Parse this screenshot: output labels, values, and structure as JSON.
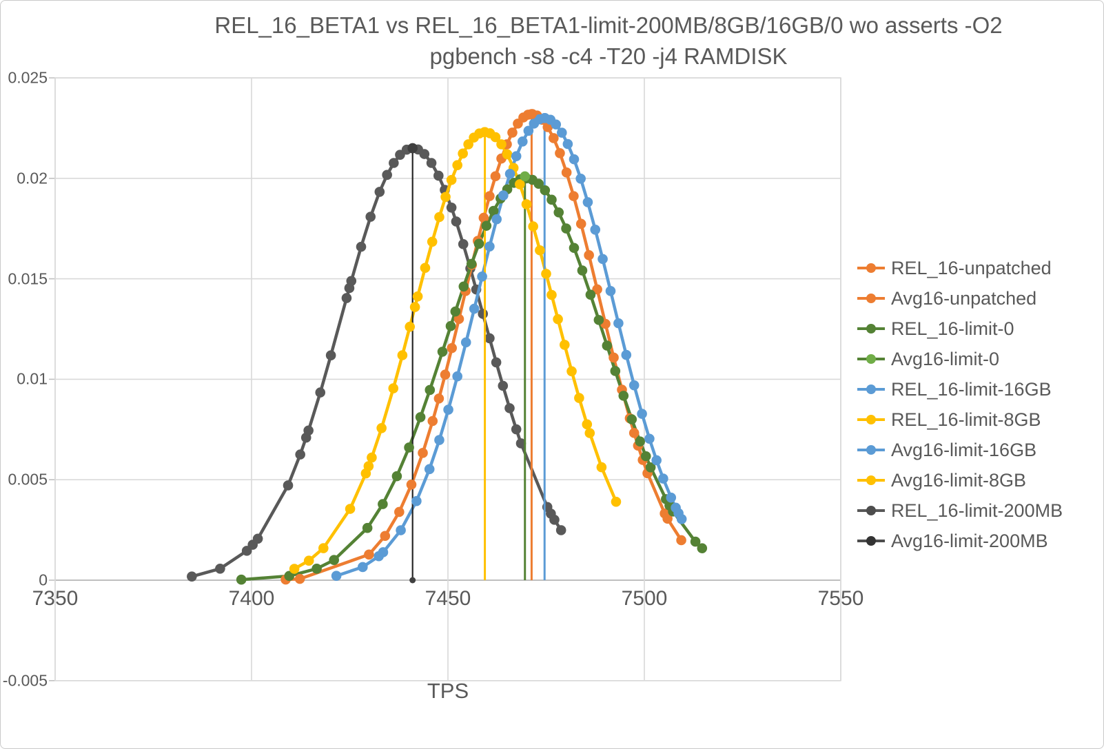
{
  "title": {
    "line1": "REL_16_BETA1 vs REL_16_BETA1-limit-200MB/8GB/16GB/0 wo asserts -O2",
    "line2": "pgbench  -s8 -c4 -T20 -j4  RAMDISK"
  },
  "chart_data": {
    "type": "line",
    "title": "REL_16_BETA1 vs REL_16_BETA1-limit-200MB/8GB/16GB/0 wo asserts -O2",
    "subtitle": "pgbench  -s8 -c4 -T20 -j4  RAMDISK",
    "xlabel": "TPS",
    "ylabel": "",
    "xlim": [
      7350,
      7550
    ],
    "ylim": [
      -0.005,
      0.025
    ],
    "xticks": [
      7350,
      7400,
      7450,
      7500,
      7550
    ],
    "yticks": [
      0.025,
      0.02,
      0.015,
      0.01,
      0.005,
      0,
      -0.005
    ],
    "grid": true,
    "legend_position": "right",
    "colors": {
      "orange": "#ED7D31",
      "dark_green": "#548235",
      "light_green": "#70AD47",
      "blue": "#5B9BD5",
      "yellow": "#FFC000",
      "gray": "#595959",
      "black_line": "#262626",
      "gridline": "#D9D9D9",
      "axis_line": "#BFBFBF",
      "text": "#595959"
    },
    "series": [
      {
        "name": "REL_16-limit-200MB",
        "color": "#595959",
        "shape": "normal-pdf",
        "mean": 7441.0,
        "sigma": 18.2,
        "peak": 0.0215,
        "marker_x": [
          7384.8,
          7392.0,
          7398.8,
          7400.3,
          7401.6,
          7409.3,
          7412.4,
          7413.9,
          7414.5,
          7417.5,
          7420.2,
          7424.2,
          7424.9,
          7425.4,
          7427.9,
          7430.3,
          7432.6,
          7434.5,
          7436.2,
          7437.8,
          7439.5,
          7441.0,
          7442.4,
          7444.0,
          7445.8,
          7447.6,
          7449.2,
          7450.9,
          7452.1,
          7453.9,
          7455.7,
          7457.2,
          7458.9,
          7460.6,
          7462.3,
          7464.0,
          7465.7,
          7467.4,
          7468.6,
          7475.3,
          7476.2,
          7477.1,
          7478.8
        ]
      },
      {
        "name": "REL_16-unpatched",
        "color": "#ED7D31",
        "shape": "normal-pdf",
        "mean": 7471.3,
        "sigma": 17.19,
        "peak": 0.0232,
        "marker_x": [
          7408.7,
          7412.3,
          7429.9,
          7434.0,
          7437.6,
          7440.7,
          7443.6,
          7446.1,
          7447.7,
          7449.3,
          7451.0,
          7452.8,
          7454.5,
          7456.1,
          7457.6,
          7459.1,
          7460.6,
          7462.1,
          7463.6,
          7465.0,
          7466.4,
          7467.8,
          7469.2,
          7470.4,
          7471.5,
          7472.7,
          7474.0,
          7475.4,
          7476.9,
          7478.5,
          7480.2,
          7482.0,
          7483.9,
          7485.9,
          7488.0,
          7490.1,
          7492.2,
          7494.3,
          7496.3,
          7497.4,
          7498.4,
          7499.6,
          7500.8,
          7505.2,
          7505.9,
          7509.4
        ]
      },
      {
        "name": "REL_16-limit-0",
        "color": "#548235",
        "shape": "normal-pdf",
        "mean": 7469.8,
        "sigma": 19.95,
        "peak": 0.02,
        "marker_x": [
          7397.4,
          7409.6,
          7416.6,
          7421.0,
          7429.5,
          7433.4,
          7437.0,
          7440.1,
          7443.0,
          7445.4,
          7448.6,
          7450.7,
          7451.9,
          7454.0,
          7456.0,
          7457.9,
          7459.8,
          7461.6,
          7463.4,
          7465.1,
          7466.8,
          7468.4,
          7470.0,
          7471.5,
          7473.1,
          7474.7,
          7476.4,
          7478.2,
          7480.1,
          7482.1,
          7484.2,
          7486.3,
          7488.4,
          7490.5,
          7492.6,
          7494.7,
          7496.8,
          7498.9,
          7500.4,
          7501.6,
          7505.5,
          7506.4,
          7507.3,
          7513.0,
          7514.7
        ]
      },
      {
        "name": "REL_16-limit-8GB",
        "color": "#FFC000",
        "shape": "normal-pdf",
        "mean": 7459.4,
        "sigma": 17.89,
        "peak": 0.0223,
        "marker_x": [
          7410.9,
          7414.6,
          7418.3,
          7425.1,
          7429.1,
          7429.8,
          7430.6,
          7433.1,
          7436.1,
          7438.4,
          7440.3,
          7441.6,
          7442.3,
          7444.2,
          7446.0,
          7447.8,
          7449.4,
          7450.9,
          7452.4,
          7453.8,
          7455.2,
          7456.6,
          7458.0,
          7459.3,
          7460.7,
          7462.1,
          7463.6,
          7465.1,
          7466.7,
          7468.3,
          7470.0,
          7471.7,
          7473.4,
          7475.0,
          7476.4,
          7478.0,
          7479.7,
          7481.5,
          7483.4,
          7485.4,
          7486.1,
          7489.1,
          7492.8
        ]
      },
      {
        "name": "REL_16-limit-16GB",
        "color": "#5B9BD5",
        "shape": "normal-pdf",
        "mean": 7474.6,
        "sigma": 17.35,
        "peak": 0.023,
        "marker_x": [
          7421.6,
          7428.3,
          7432.4,
          7433.5,
          7438.0,
          7442.0,
          7445.3,
          7447.8,
          7450.1,
          7452.4,
          7454.6,
          7456.7,
          7458.7,
          7460.6,
          7462.4,
          7464.1,
          7465.8,
          7467.4,
          7469.0,
          7470.5,
          7471.9,
          7473.3,
          7474.7,
          7476.1,
          7477.5,
          7479.0,
          7480.5,
          7482.1,
          7483.8,
          7485.6,
          7487.5,
          7489.4,
          7491.4,
          7493.4,
          7495.4,
          7497.4,
          7499.4,
          7501.3,
          7503.1,
          7504.8,
          7506.8,
          7508.0,
          7508.7,
          7509.5
        ]
      }
    ],
    "avg_lines": [
      {
        "name": "Avg16-limit-200MB",
        "line_color": "#262626",
        "marker_color": "#404040",
        "x": 7441.0,
        "top": 0.0215,
        "bottom_marker": true,
        "width": 2.2
      },
      {
        "name": "Avg16-limit-0",
        "line_color": "#548235",
        "marker_color": "#70AD47",
        "x": 7469.6,
        "top": 0.0201,
        "bottom_marker": false,
        "width": 3
      },
      {
        "name": "Avg16-unpatched",
        "line_color": "#ED7D31",
        "marker_color": "#ED7D31",
        "x": 7471.3,
        "top": 0.0232,
        "bottom_marker": false,
        "width": 3
      },
      {
        "name": "Avg16-limit-8GB",
        "line_color": "#FFC000",
        "marker_color": "#FFC000",
        "x": 7459.4,
        "top": 0.0223,
        "bottom_marker": false,
        "width": 3
      },
      {
        "name": "Avg16-limit-16GB",
        "line_color": "#5B9BD5",
        "marker_color": "#5B9BD5",
        "x": 7474.6,
        "top": 0.023,
        "bottom_marker": false,
        "width": 3
      }
    ],
    "legend": [
      {
        "label": "REL_16-unpatched",
        "line_color": "#ED7D31",
        "dot_color": "#ED7D31"
      },
      {
        "label": "Avg16-unpatched",
        "line_color": "#ED7D31",
        "dot_color": "#ED7D31"
      },
      {
        "label": "REL_16-limit-0",
        "line_color": "#548235",
        "dot_color": "#548235"
      },
      {
        "label": "Avg16-limit-0",
        "line_color": "#548235",
        "dot_color": "#70AD47"
      },
      {
        "label": "REL_16-limit-16GB",
        "line_color": "#5B9BD5",
        "dot_color": "#5B9BD5"
      },
      {
        "label": "REL_16-limit-8GB",
        "line_color": "#FFC000",
        "dot_color": "#FFC000"
      },
      {
        "label": "Avg16-limit-16GB",
        "line_color": "#5B9BD5",
        "dot_color": "#5B9BD5"
      },
      {
        "label": "Avg16-limit-8GB",
        "line_color": "#FFC000",
        "dot_color": "#FFC000"
      },
      {
        "label": "REL_16-limit-200MB",
        "line_color": "#595959",
        "dot_color": "#4D4D4D"
      },
      {
        "label": "Avg16-limit-200MB",
        "line_color": "#4D4D4D",
        "dot_color": "#333333"
      }
    ]
  }
}
